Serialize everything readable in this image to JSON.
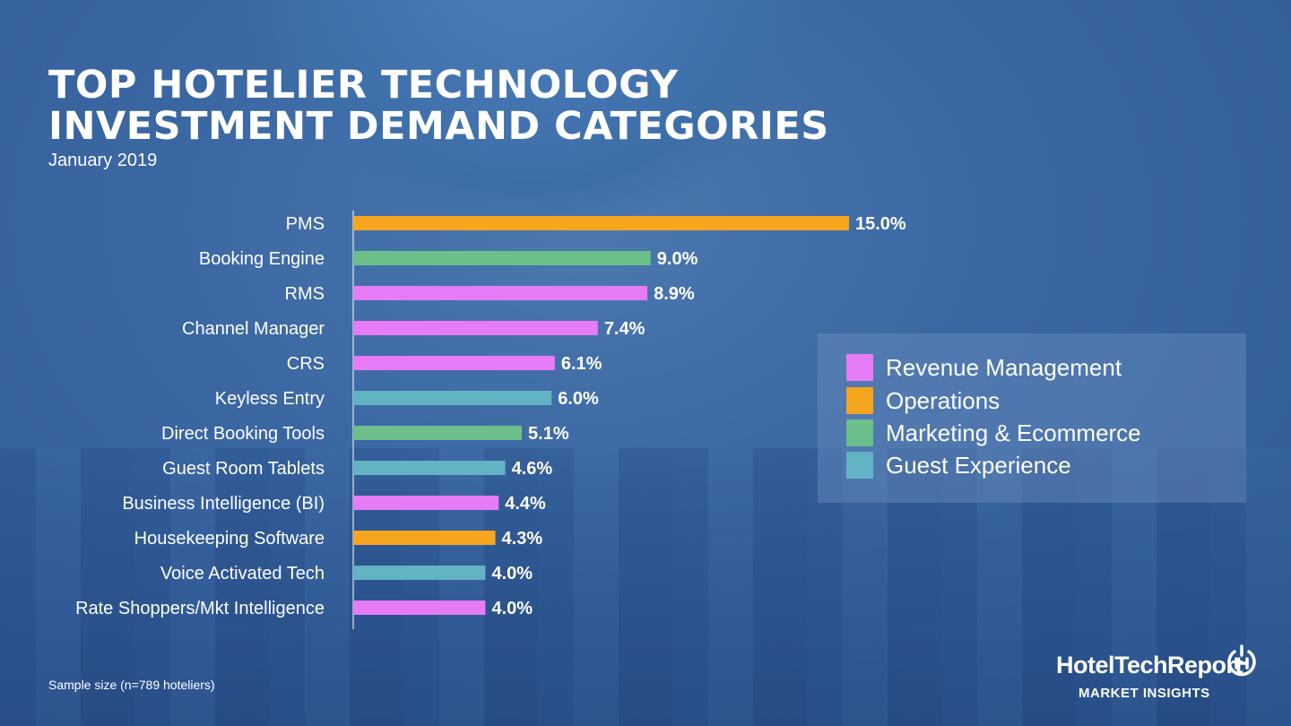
{
  "header": {
    "title_line1": "TOP HOTELIER TECHNOLOGY",
    "title_line2": "INVESTMENT DEMAND CATEGORIES",
    "subtitle": "January 2019"
  },
  "legend": {
    "items": [
      {
        "label": "Revenue Management",
        "color": "#e57cf5"
      },
      {
        "label": "Operations",
        "color": "#f6a51e"
      },
      {
        "label": "Marketing & Ecommerce",
        "color": "#6bbf8a"
      },
      {
        "label": "Guest Experience",
        "color": "#62b3c4"
      }
    ]
  },
  "chart_data": {
    "type": "bar",
    "orientation": "horizontal",
    "categories": [
      "PMS",
      "Booking Engine",
      "RMS",
      "Channel Manager",
      "CRS",
      "Keyless Entry",
      "Direct Booking Tools",
      "Guest Room Tablets",
      "Business Intelligence (BI)",
      "Housekeeping Software",
      "Voice Activated Tech",
      "Rate Shoppers/Mkt Intelligence"
    ],
    "values": [
      15.0,
      9.0,
      8.9,
      7.4,
      6.1,
      6.0,
      5.1,
      4.6,
      4.4,
      4.3,
      4.0,
      4.0
    ],
    "value_labels": [
      "15.0%",
      "9.0%",
      "8.9%",
      "7.4%",
      "6.1%",
      "6.0%",
      "5.1%",
      "4.6%",
      "4.4%",
      "4.3%",
      "4.0%",
      "4.0%"
    ],
    "bar_groups": [
      "Operations",
      "Marketing & Ecommerce",
      "Revenue Management",
      "Revenue Management",
      "Revenue Management",
      "Guest Experience",
      "Marketing & Ecommerce",
      "Guest Experience",
      "Revenue Management",
      "Operations",
      "Guest Experience",
      "Revenue Management"
    ],
    "unit": "%",
    "xlim": [
      0,
      15
    ]
  },
  "footer": {
    "note": "Sample size (n=789 hoteliers)",
    "brand": "HotelTechReport",
    "brand_sub": "MARKET INSIGHTS"
  }
}
